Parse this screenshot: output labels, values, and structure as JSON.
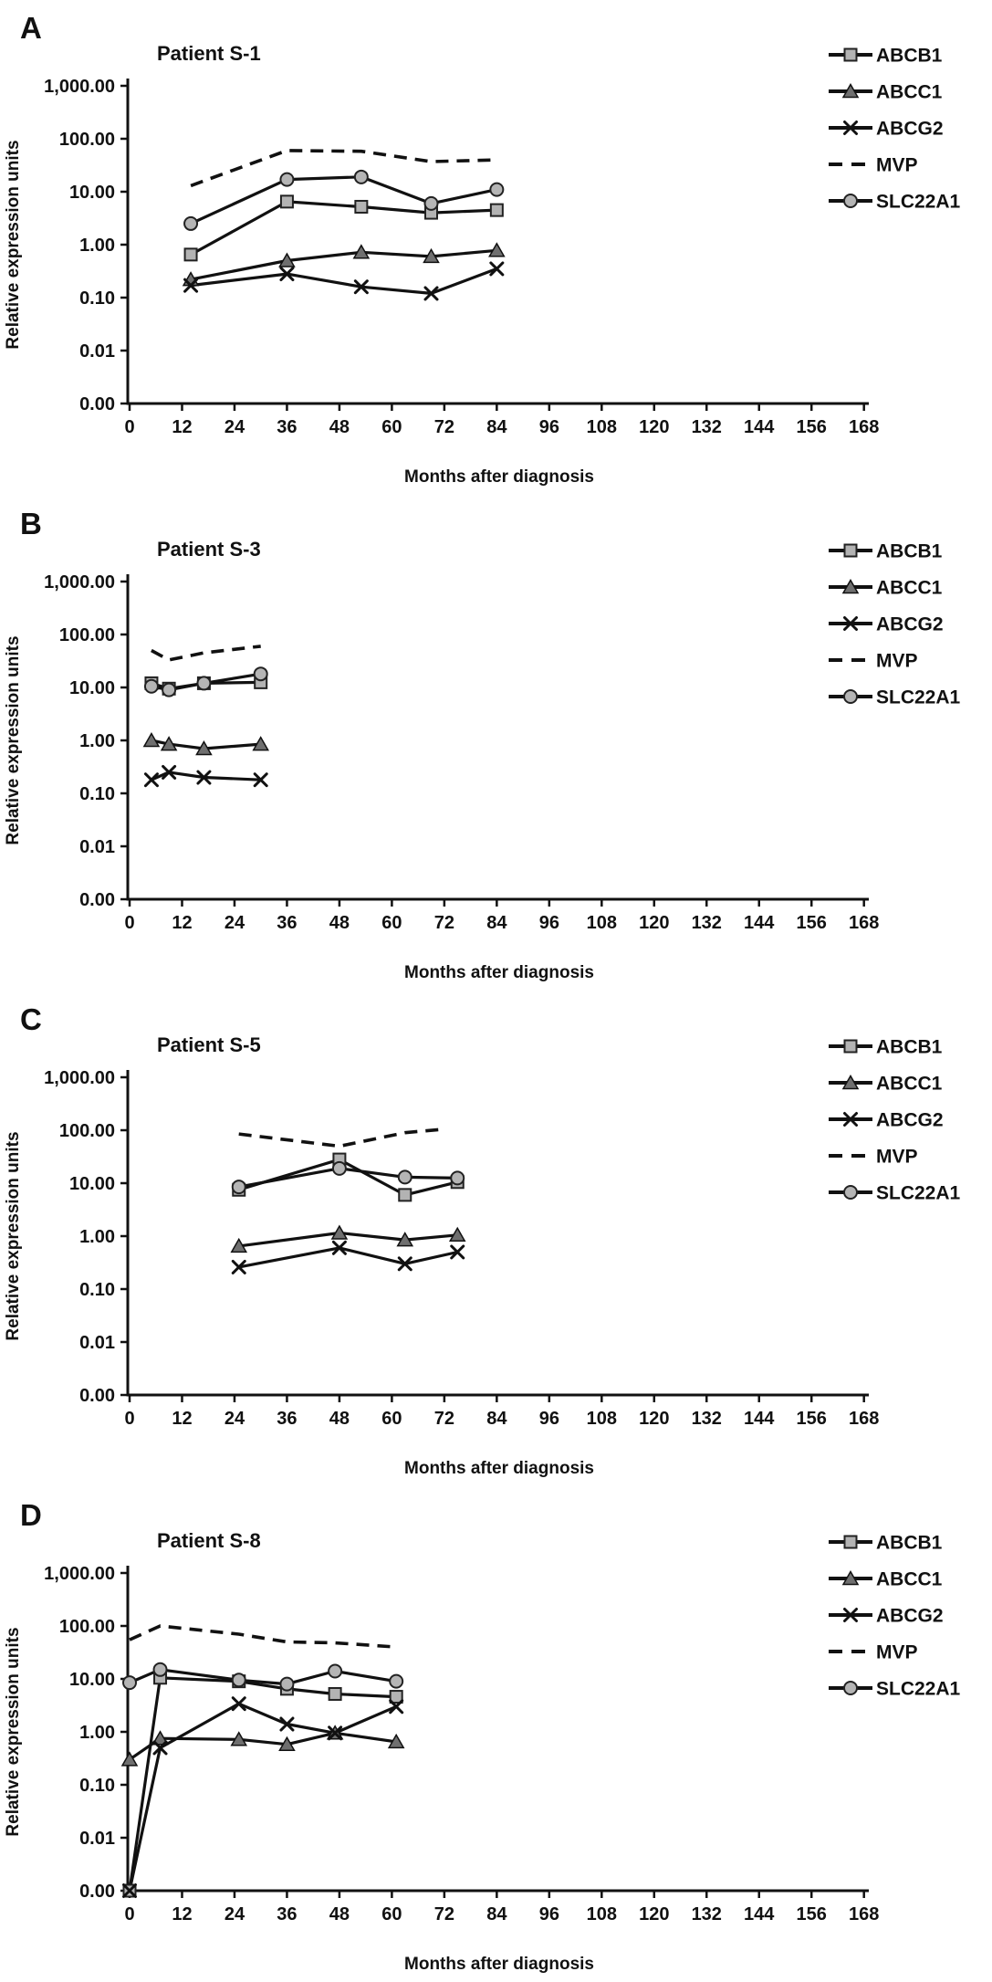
{
  "figure": {
    "y_axis_label": "Relative expression units",
    "x_axis_label": "Months after diagnosis",
    "y_tick_labels": [
      "1,000.00",
      "100.00",
      "10.00",
      "1.00",
      "0.10",
      "0.01",
      "0.00"
    ],
    "x_ticks": [
      0,
      12,
      24,
      36,
      48,
      60,
      72,
      84,
      96,
      108,
      120,
      132,
      144,
      156,
      168
    ],
    "legend": [
      {
        "label": "ABCB1",
        "marker": "square"
      },
      {
        "label": "ABCC1",
        "marker": "triangle"
      },
      {
        "label": "ABCG2",
        "marker": "x"
      },
      {
        "label": "MVP",
        "marker": "dash"
      },
      {
        "label": "SLC22A1",
        "marker": "circle"
      }
    ],
    "colors": {
      "line": "#111111",
      "square_fill": "#b3b3b3",
      "circle_fill": "#b5b5b5",
      "triangle_fill": "#6f6f6f",
      "marker_stroke": "#222222",
      "text": "#111111"
    }
  },
  "chart_data": [
    {
      "type": "line",
      "panel_letter": "A",
      "title": "Patient S-1",
      "xlabel": "Months after diagnosis",
      "ylabel": "Relative expression units",
      "y_scale": "log",
      "ylim": [
        0.001,
        1000
      ],
      "xlim": [
        0,
        168
      ],
      "x": [
        14,
        36,
        53,
        69,
        84
      ],
      "series": [
        {
          "name": "ABCB1",
          "marker": "square",
          "values": [
            0.65,
            6.5,
            5.2,
            4.0,
            4.5
          ]
        },
        {
          "name": "ABCC1",
          "marker": "triangle",
          "values": [
            0.22,
            0.5,
            0.72,
            0.6,
            0.78
          ]
        },
        {
          "name": "ABCG2",
          "marker": "x",
          "values": [
            0.17,
            0.28,
            0.16,
            0.12,
            0.35
          ]
        },
        {
          "name": "MVP",
          "marker": "dash",
          "values": [
            13,
            60,
            58,
            37,
            40
          ]
        },
        {
          "name": "SLC22A1",
          "marker": "circle",
          "values": [
            2.5,
            17,
            19,
            6,
            11
          ]
        }
      ]
    },
    {
      "type": "line",
      "panel_letter": "B",
      "title": "Patient S-3",
      "xlabel": "Months after diagnosis",
      "ylabel": "Relative expression units",
      "y_scale": "log",
      "ylim": [
        0.001,
        1000
      ],
      "xlim": [
        0,
        168
      ],
      "x": [
        5,
        9,
        17,
        30
      ],
      "series": [
        {
          "name": "ABCB1",
          "marker": "square",
          "values": [
            12,
            9.5,
            12,
            12.5
          ]
        },
        {
          "name": "ABCC1",
          "marker": "triangle",
          "values": [
            1.0,
            0.85,
            0.7,
            0.85
          ]
        },
        {
          "name": "ABCG2",
          "marker": "x",
          "values": [
            0.18,
            0.25,
            0.2,
            0.18
          ]
        },
        {
          "name": "MVP",
          "marker": "dash",
          "values": [
            50,
            33,
            45,
            60
          ]
        },
        {
          "name": "SLC22A1",
          "marker": "circle",
          "values": [
            10.5,
            9,
            12,
            18
          ]
        }
      ]
    },
    {
      "type": "line",
      "panel_letter": "C",
      "title": "Patient S-5",
      "xlabel": "Months after diagnosis",
      "ylabel": "Relative expression units",
      "y_scale": "log",
      "ylim": [
        0.001,
        1000
      ],
      "xlim": [
        0,
        168
      ],
      "x": [
        25,
        48,
        63,
        75
      ],
      "series": [
        {
          "name": "ABCB1",
          "marker": "square",
          "values": [
            7.5,
            28,
            6,
            10.5
          ]
        },
        {
          "name": "ABCC1",
          "marker": "triangle",
          "values": [
            0.65,
            1.15,
            0.85,
            1.05
          ]
        },
        {
          "name": "ABCG2",
          "marker": "x",
          "values": [
            0.26,
            0.6,
            0.3,
            0.5
          ]
        },
        {
          "name": "MVP",
          "marker": "dash",
          "x_override": [
            25,
            48,
            63,
            72
          ],
          "values": [
            85,
            50,
            90,
            105
          ]
        },
        {
          "name": "SLC22A1",
          "marker": "circle",
          "values": [
            8.5,
            19,
            13,
            12.5
          ]
        }
      ]
    },
    {
      "type": "line",
      "panel_letter": "D",
      "title": "Patient S-8",
      "xlabel": "Months after diagnosis",
      "ylabel": "Relative expression units",
      "y_scale": "log",
      "ylim": [
        0.001,
        1000
      ],
      "xlim": [
        0,
        168
      ],
      "x": [
        0,
        7,
        25,
        36,
        47,
        61
      ],
      "series": [
        {
          "name": "ABCB1",
          "marker": "square",
          "values": [
            0,
            10.5,
            9,
            6.5,
            5.2,
            4.6
          ]
        },
        {
          "name": "ABCC1",
          "marker": "triangle",
          "values": [
            0.3,
            0.75,
            0.72,
            0.58,
            0.95,
            0.65
          ]
        },
        {
          "name": "ABCG2",
          "marker": "x",
          "values": [
            0,
            0.5,
            3.4,
            1.4,
            0.95,
            3.0
          ]
        },
        {
          "name": "MVP",
          "marker": "dash",
          "values": [
            55,
            100,
            70,
            50,
            48,
            40
          ]
        },
        {
          "name": "SLC22A1",
          "marker": "circle",
          "values": [
            8.5,
            15,
            9.5,
            8,
            14,
            9
          ]
        }
      ]
    }
  ]
}
